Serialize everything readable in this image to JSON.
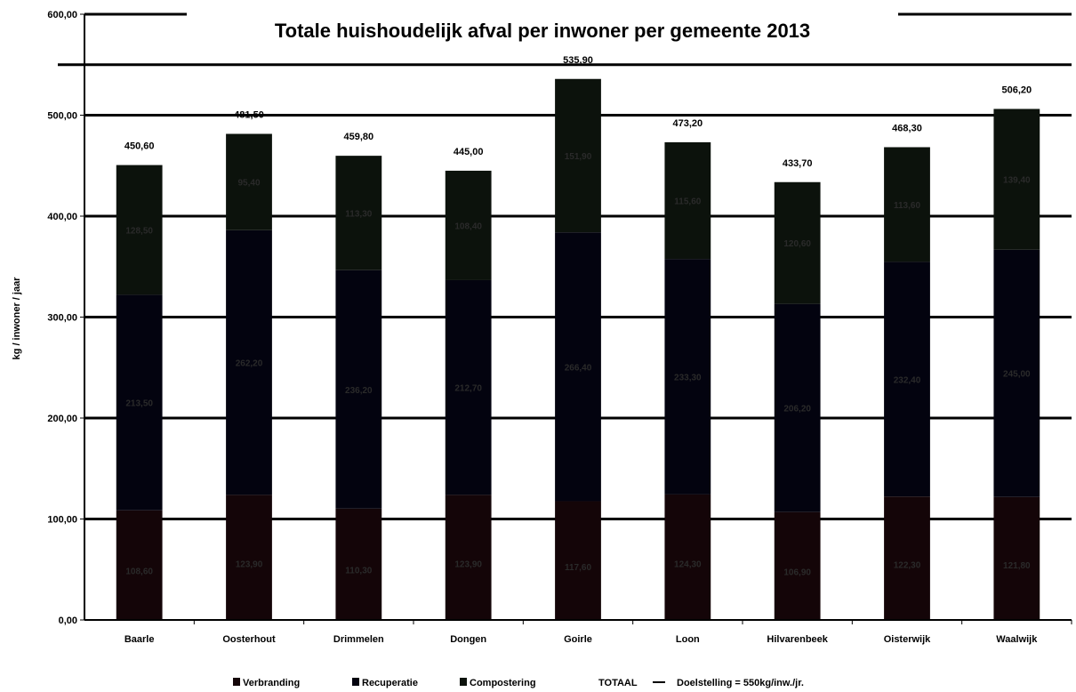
{
  "chart_data": {
    "type": "bar",
    "stacked": true,
    "title": "Totale huishoudelijk afval per inwoner per gemeente 2013",
    "ylabel": "kg / inwoner / jaar",
    "xlabel": "",
    "ylim": [
      0,
      600
    ],
    "y_ticks": [
      "0,00",
      "100,00",
      "200,00",
      "300,00",
      "400,00",
      "500,00",
      "600,00"
    ],
    "grid": true,
    "legend_position": "bottom",
    "categories": [
      "Baarle",
      "Oosterhout",
      "Drimmelen",
      "Dongen",
      "Goirle",
      "Loon",
      "Hilvarenbeek",
      "Oisterwijk",
      "Waalwijk"
    ],
    "series": [
      {
        "name": "Verbranding",
        "color": "#140508",
        "values": [
          108.6,
          123.9,
          110.3,
          123.9,
          117.6,
          124.3,
          106.9,
          122.3,
          121.8
        ],
        "labels": [
          "108,60",
          "123,90",
          "110,30",
          "123,90",
          "117,60",
          "124,30",
          "106,90",
          "122,30",
          "121,80"
        ]
      },
      {
        "name": "Recuperatie",
        "color": "#03030f",
        "values": [
          213.5,
          262.2,
          236.2,
          212.7,
          266.4,
          233.3,
          206.2,
          232.4,
          245.0
        ],
        "labels": [
          "213,50",
          "262,20",
          "236,20",
          "212,70",
          "266,40",
          "233,30",
          "206,20",
          "232,40",
          "245,00"
        ]
      },
      {
        "name": "Compostering",
        "color": "#0c120c",
        "values": [
          128.5,
          95.4,
          113.3,
          108.4,
          151.9,
          115.6,
          120.6,
          113.6,
          139.4
        ],
        "labels": [
          "128,50",
          "95,40",
          "113,30",
          "108,40",
          "151,90",
          "115,60",
          "120,60",
          "113,60",
          "139,40"
        ]
      }
    ],
    "totals": [
      "450,60",
      "481,50",
      "459,80",
      "445,00",
      "535,90",
      "473,20",
      "433,70",
      "468,30",
      "506,20"
    ],
    "target_series": {
      "name": "Doelstelling = 550kg/inw./jr.",
      "value": 550,
      "color": "#000000"
    },
    "legend_entries": [
      "Verbranding",
      "Recuperatie",
      "Compostering",
      "TOTAAL",
      "Doelstelling = 550kg/inw./jr."
    ]
  }
}
